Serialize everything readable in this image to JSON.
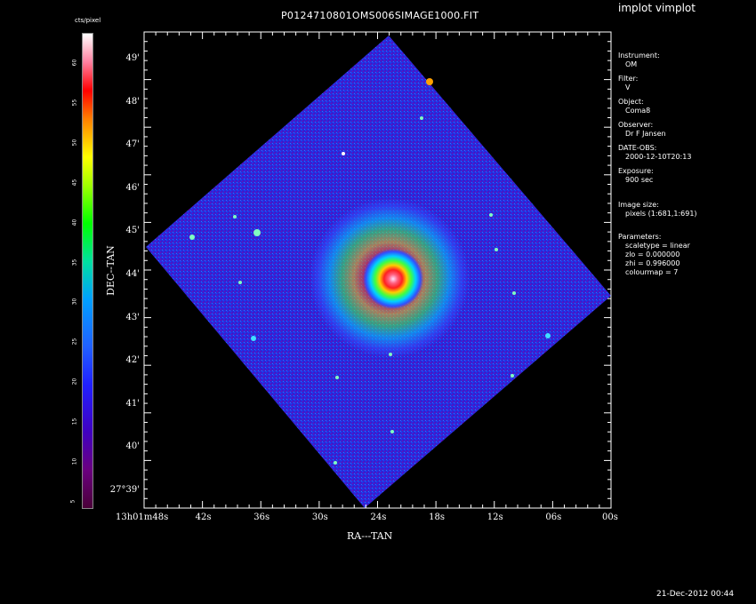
{
  "header": {
    "image_title": "P0124710801OMS006SIMAGE1000.FIT",
    "app_label": "implot vimplot"
  },
  "colorbar": {
    "unit_label": "cts/pixel",
    "ticks": [
      "5",
      "10",
      "15",
      "20",
      "25",
      "30",
      "35",
      "40",
      "45",
      "50",
      "55",
      "60"
    ]
  },
  "axes": {
    "xlabel": "RA---TAN",
    "ylabel": "DEC--TAN",
    "x_ticks": [
      "13h01m48s",
      "42s",
      "36s",
      "30s",
      "24s",
      "18s",
      "12s",
      "06s",
      "00s"
    ],
    "y_ticks": [
      "27°39'",
      "40'",
      "41'",
      "42'",
      "43'",
      "44'",
      "45'",
      "46'",
      "47'",
      "48'",
      "49'"
    ]
  },
  "info_panel": {
    "instrument_label": "Instrument:",
    "instrument_value": "OM",
    "filter_label": "Filter:",
    "filter_value": "V",
    "object_label": "Object:",
    "object_value": "Coma8",
    "observer_label": "Observer:",
    "observer_value": "Dr F Jansen",
    "date_label": "DATE-OBS:",
    "date_value": "2000-12-10T20:13",
    "exposure_label": "Exposure:",
    "exposure_value": "900 sec",
    "imagesize_label": "Image size:",
    "imagesize_value": "pixels (1:681,1:691)",
    "params_label": "Parameters:",
    "scaletype": "scaletype = linear",
    "zlo": "zlo = 0.000000",
    "zhi": "zhi = 0.996000",
    "colourmap": "colourmap = 7"
  },
  "footer": {
    "timestamp": "21-Dec-2012 00:44"
  }
}
